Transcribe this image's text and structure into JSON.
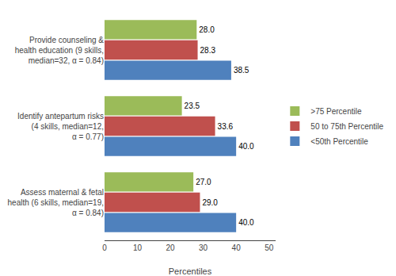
{
  "chart_data": {
    "type": "bar",
    "orientation": "horizontal",
    "categories": [
      "Provide counseling &\nhealth education (9 skills,\nmedian=32, α = 0.84)",
      "Identify antepartum risks\n(4 skills, median=12,\nα = 0.77)",
      "Assess maternal & fetal\nhealth (6 skills, median=19,\nα = 0.84)"
    ],
    "series": [
      {
        "name": ">75 Percentile",
        "color": "#9BBB59",
        "values": [
          28.0,
          23.5,
          27.0
        ],
        "value_labels": [
          "28.0",
          "23.5",
          "27.0"
        ]
      },
      {
        "name": "50 to 75th Percentile",
        "color": "#C0504D",
        "values": [
          28.3,
          33.6,
          29.0
        ],
        "value_labels": [
          "28.3",
          "33.6",
          "29.0"
        ]
      },
      {
        "name": "<50th Percentile",
        "color": "#4F81BD",
        "values": [
          38.5,
          40.0,
          40.0
        ],
        "value_labels": [
          "38.5",
          "40.0",
          "40.0"
        ]
      }
    ],
    "xlabel": "Percentiles",
    "xlim": [
      0,
      52
    ],
    "xticks": [
      0,
      10,
      20,
      30,
      40,
      50
    ],
    "data_labels": true,
    "grid": false,
    "legend": "right"
  }
}
